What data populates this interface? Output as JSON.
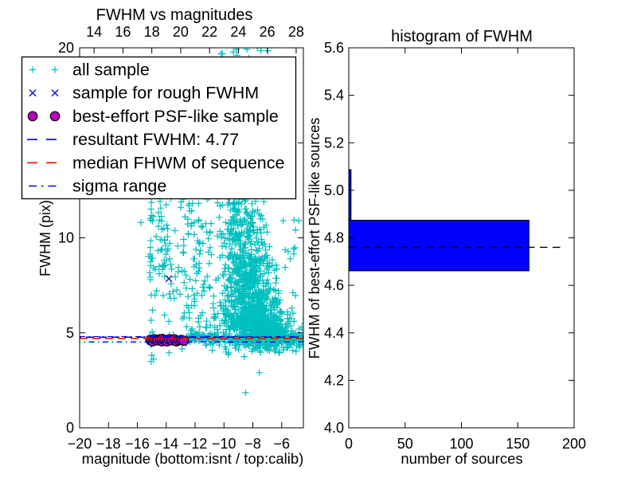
{
  "figure": {
    "background": "#ffffff"
  },
  "chart_data": [
    {
      "type": "scatter",
      "title": "FWHM vs magnitudes",
      "xlabel": "magnitude (bottom:isnt / top:calib)",
      "ylabel": "FWHM (pix)",
      "xlim": [
        -20,
        -4.5
      ],
      "ylim": [
        0,
        20
      ],
      "top_axis": {
        "lim": [
          13,
          28.5
        ],
        "ticks": [
          14,
          16,
          18,
          20,
          22,
          24,
          26,
          28
        ],
        "labels": [
          "14",
          "16",
          "18",
          "20",
          "22",
          "24",
          "26",
          "28"
        ]
      },
      "xticks": [
        -20,
        -18,
        -16,
        -14,
        -12,
        -10,
        -8,
        -6
      ],
      "xtick_labels": [
        "−20",
        "−18",
        "−16",
        "−14",
        "−12",
        "−10",
        "−8",
        "−6"
      ],
      "yticks": [
        0,
        5,
        10,
        15,
        20
      ],
      "ytick_labels": [
        "0",
        "5",
        "10",
        "15",
        "20"
      ],
      "grid": false,
      "legend_position": "upper left",
      "series": [
        {
          "name": "all sample",
          "marker": "+",
          "color": "#00bfbf",
          "seed": 42,
          "clusters": [
            {
              "x": [
                "gauss",
                -8.8,
                0.75
              ],
              "y": [
                "uniform",
                11.0,
                13.5
              ],
              "n": 110
            },
            {
              "x": [
                "gauss",
                -8.7,
                0.85
              ],
              "y": [
                "uniform",
                9.0,
                11.0
              ],
              "n": 150
            },
            {
              "x": [
                "gauss",
                -8.5,
                0.95
              ],
              "y": [
                "uniform",
                7.3,
                9.0
              ],
              "n": 220
            },
            {
              "x": [
                "gauss",
                -8.2,
                1.1
              ],
              "y": [
                "uniform",
                6.0,
                7.3
              ],
              "n": 240
            },
            {
              "x": [
                "gauss",
                -8.0,
                1.2
              ],
              "y": [
                "uniform",
                5.1,
                6.0
              ],
              "n": 260
            },
            {
              "x": [
                "gauss",
                -8.8,
                0.8
              ],
              "y": [
                "uniform",
                13.5,
                20.4
              ],
              "n": 110
            },
            {
              "x": [
                "gauss",
                -7.5,
                0.55
              ],
              "y": [
                "gauss",
                5.5,
                0.5
              ],
              "n": 150
            },
            {
              "x": [
                "uniform",
                -12.7,
                -4.55
              ],
              "y": [
                "gauss",
                4.72,
                0.14
              ],
              "n": 260
            },
            {
              "x": [
                "gauss",
                -6.6,
                1.3
              ],
              "y": [
                "gauss",
                4.8,
                0.28
              ],
              "n": 240
            },
            {
              "x": [
                "gauss",
                -7.6,
                1.4
              ],
              "y": [
                "gauss",
                4.3,
                0.2
              ],
              "n": 60
            },
            {
              "x": [
                "uniform",
                -12.9,
                -10.9
              ],
              "y": [
                "uniform",
                4.9,
                13.5
              ],
              "n": 90
            },
            {
              "x": [
                "gauss",
                -15.05,
                0.08
              ],
              "y": [
                "uniform",
                3.4,
                20.4
              ],
              "n": 55
            },
            {
              "x": [
                "gauss",
                -14.2,
                0.28
              ],
              "y": [
                "gauss",
                9.2,
                2.0
              ],
              "n": 52
            },
            {
              "x": [
                "uniform",
                -13.9,
                -12.4
              ],
              "y": [
                "uniform",
                4.5,
                12.5
              ],
              "n": 30
            },
            {
              "x": [
                "uniform",
                -6.1,
                -4.7
              ],
              "y": [
                "uniform",
                8.5,
                11.0
              ],
              "n": 8
            }
          ],
          "outliers": [
            [
              -15.75,
              10.8
            ],
            [
              -7.55,
              2.9
            ],
            [
              -8.5,
              1.85
            ],
            [
              -6.2,
              3.95
            ],
            [
              -16.05,
              12.6
            ],
            [
              -13.75,
              12.5
            ],
            [
              -9.15,
              19.9
            ],
            [
              -7.45,
              19.85
            ],
            [
              -6.55,
              20.15
            ],
            [
              -10.2,
              19.7
            ],
            [
              -5.6,
              6.1
            ],
            [
              -5.15,
              5.6
            ],
            [
              -13.8,
              3.95
            ],
            [
              -12.9,
              4.15
            ],
            [
              -5.9,
              10.9
            ],
            [
              -5.4,
              8.9
            ],
            [
              -5.3,
              6.3
            ],
            [
              -4.8,
              5.2
            ]
          ]
        },
        {
          "name": "sample for rough FWHM",
          "marker": "x",
          "color": "#2222dd",
          "points": [
            [
              -13.82,
              7.85
            ],
            [
              -15.0,
              4.6
            ],
            [
              -14.35,
              4.65
            ],
            [
              -13.6,
              4.58
            ],
            [
              -12.9,
              4.62
            ]
          ]
        },
        {
          "name": "best-effort PSF-like sample",
          "marker": "o",
          "color": "#bf00bf",
          "edge_color": "#000000",
          "points": [
            [
              -15.1,
              4.62
            ],
            [
              -14.95,
              4.55
            ],
            [
              -14.8,
              4.66
            ],
            [
              -14.62,
              4.6
            ],
            [
              -14.45,
              4.66
            ],
            [
              -14.3,
              4.55
            ],
            [
              -14.28,
              4.68
            ],
            [
              -14.12,
              4.62
            ],
            [
              -13.95,
              4.55
            ],
            [
              -13.8,
              4.66
            ],
            [
              -13.62,
              4.6
            ],
            [
              -13.45,
              4.66
            ],
            [
              -13.3,
              4.55
            ],
            [
              -13.12,
              4.6
            ],
            [
              -12.95,
              4.63
            ],
            [
              -12.78,
              4.58
            ]
          ]
        }
      ],
      "hlines": [
        {
          "name": "resultant FWHM: 4.77",
          "y": 4.77,
          "style": "dashed",
          "color": "#0000ee"
        },
        {
          "name": "median FHWM of sequence",
          "y": 4.7,
          "style": "dashed",
          "color": "#ff0000"
        },
        {
          "name": "sigma range",
          "y": [
            4.8,
            4.52
          ],
          "style": "dashdot",
          "color": "#0000ee"
        }
      ],
      "legend": [
        {
          "label": "all sample"
        },
        {
          "label": "sample for rough FWHM"
        },
        {
          "label": "best-effort PSF-like sample"
        },
        {
          "label": "resultant FWHM: 4.77"
        },
        {
          "label": "median FHWM of sequence"
        },
        {
          "label": "sigma range"
        }
      ]
    },
    {
      "type": "bar-horizontal",
      "title": "histogram of FWHM",
      "xlabel": "number of sources",
      "ylabel": "FWHM of best-effort PSF-like sources",
      "xlim": [
        0,
        200
      ],
      "ylim": [
        4.0,
        5.6
      ],
      "xticks": [
        0,
        50,
        100,
        150,
        200
      ],
      "xtick_labels": [
        "0",
        "50",
        "100",
        "150",
        "200"
      ],
      "yticks": [
        4.0,
        4.2,
        4.4,
        4.6,
        4.8,
        5.0,
        5.2,
        5.4,
        5.6
      ],
      "ytick_labels": [
        "4.0",
        "4.2",
        "4.4",
        "4.6",
        "4.8",
        "5.0",
        "5.2",
        "5.4",
        "5.6"
      ],
      "bar_color": "#0000ff",
      "bar_edge_color": "#000000",
      "bins": [
        {
          "from": 4.661,
          "to": 4.874,
          "count": 160
        },
        {
          "from": 4.874,
          "to": 5.087,
          "count": 2
        }
      ],
      "median_line": {
        "y": 4.76,
        "style": "dashed",
        "color": "#000000"
      }
    }
  ]
}
